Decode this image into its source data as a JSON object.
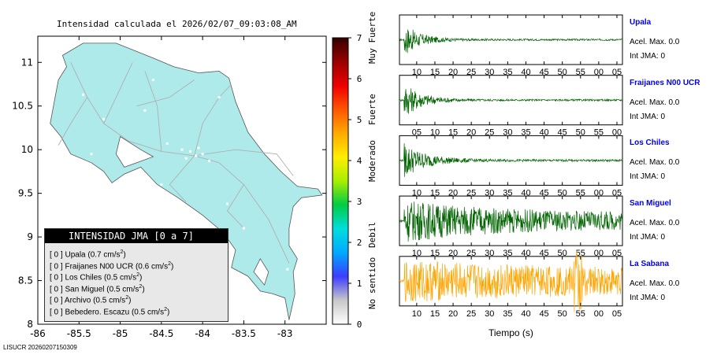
{
  "map": {
    "title": "Intensidad calculada el 2026/02/07_09:03:08_AM",
    "x_ticks": [
      "-86",
      "-85.5",
      "-85",
      "-84.5",
      "-84",
      "-83.5",
      "-83"
    ],
    "y_ticks": [
      "11",
      "10.5",
      "10",
      "9.5",
      "9",
      "8.5",
      "8"
    ],
    "xlim": [
      -86,
      -82.5
    ],
    "ylim": [
      8,
      11.3
    ],
    "land_color": "#aeeaea",
    "footer": "LISUCR 20260207150309"
  },
  "legend": {
    "header": "INTENSIDAD JMA [0 a 7]",
    "items": [
      {
        "jma": "[ 0 ]",
        "name": "Upala",
        "value": "(0.7 cm/s",
        "exp": "2",
        "close": ")"
      },
      {
        "jma": "[ 0 ]",
        "name": "Fraijanes N00 UCR",
        "value": "(0.6 cm/s",
        "exp": "2",
        "close": ")"
      },
      {
        "jma": "[ 0 ]",
        "name": "Los Chiles",
        "value": "(0.5 cm/s",
        "exp": "2",
        "close": ")"
      },
      {
        "jma": "[ 0 ]",
        "name": "San Miguel",
        "value": "(0.5 cm/s",
        "exp": "2",
        "close": ")"
      },
      {
        "jma": "[ 0 ]",
        "name": "Archivo",
        "value": "(0.5 cm/s",
        "exp": "2",
        "close": ")"
      },
      {
        "jma": "[ 0 ]",
        "name": "Bebedero. Escazu",
        "value": "(0.5 cm/s",
        "exp": "2",
        "close": ")"
      }
    ]
  },
  "colorbar": {
    "ticks": [
      "0",
      "1",
      "2",
      "3",
      "4",
      "5",
      "6",
      "7"
    ],
    "range": [
      0,
      7
    ],
    "labels": [
      "No sentido",
      "Debil",
      "Moderado",
      "Fuerte",
      "Muy Fuerte"
    ],
    "label_levels": [
      0.5,
      2.0,
      3.6,
      5.0,
      6.5
    ],
    "colors": [
      "#ffffff",
      "#c8c8c8",
      "#3c3cff",
      "#00aaff",
      "#00dddd",
      "#00cc44",
      "#a8ee00",
      "#ffee00",
      "#ffaa00",
      "#ff5500",
      "#ee0000",
      "#990000",
      "#330000"
    ]
  },
  "waveforms": {
    "xlabel": "Tiempo (s)",
    "stations": [
      {
        "name": "Upala",
        "acel": "Acel. Max. 0.0",
        "jma": "Int JMA: 0",
        "color": "#006400",
        "ticks": [
          "10",
          "15",
          "20",
          "25",
          "30",
          "35",
          "40",
          "45",
          "50",
          "55",
          "00",
          "05"
        ],
        "tick_start": 1.2,
        "decay": 3.5,
        "noise": 0.04
      },
      {
        "name": "Fraijanes N00 UCR",
        "acel": "Acel. Max. 0.0",
        "jma": "Int JMA: 0",
        "color": "#006400",
        "ticks": [
          "05",
          "10",
          "15",
          "20",
          "25",
          "30",
          "35",
          "40",
          "45",
          "50",
          "55",
          "00"
        ],
        "tick_start": 1.2,
        "decay": 3.0,
        "noise": 0.04
      },
      {
        "name": "Los Chiles",
        "acel": "Acel. Max. 0.0",
        "jma": "Int JMA: 0",
        "color": "#006400",
        "ticks": [
          "10",
          "15",
          "20",
          "25",
          "30",
          "35",
          "40",
          "45",
          "50",
          "55",
          "00",
          "05"
        ],
        "tick_start": 1.2,
        "decay": 2.6,
        "noise": 0.05
      },
      {
        "name": "San Miguel",
        "acel": "Acel. Max. 0.0",
        "jma": "Int JMA: 0",
        "color": "#006400",
        "ticks": [
          "10",
          "15",
          "20",
          "25",
          "30",
          "35",
          "40",
          "45",
          "50",
          "55",
          "00",
          "05"
        ],
        "tick_start": 1.2,
        "decay": 0.6,
        "noise": 0.35
      },
      {
        "name": "La Sabana",
        "acel": "Acel. Max. 0.0",
        "jma": "Int JMA: 0",
        "color": "#ffa500",
        "ticks": [
          "10",
          "15",
          "20",
          "25",
          "30",
          "35",
          "40",
          "45",
          "50",
          "55",
          "00",
          "05"
        ],
        "tick_start": 1.2,
        "decay": 0.3,
        "noise": 0.45
      }
    ]
  }
}
